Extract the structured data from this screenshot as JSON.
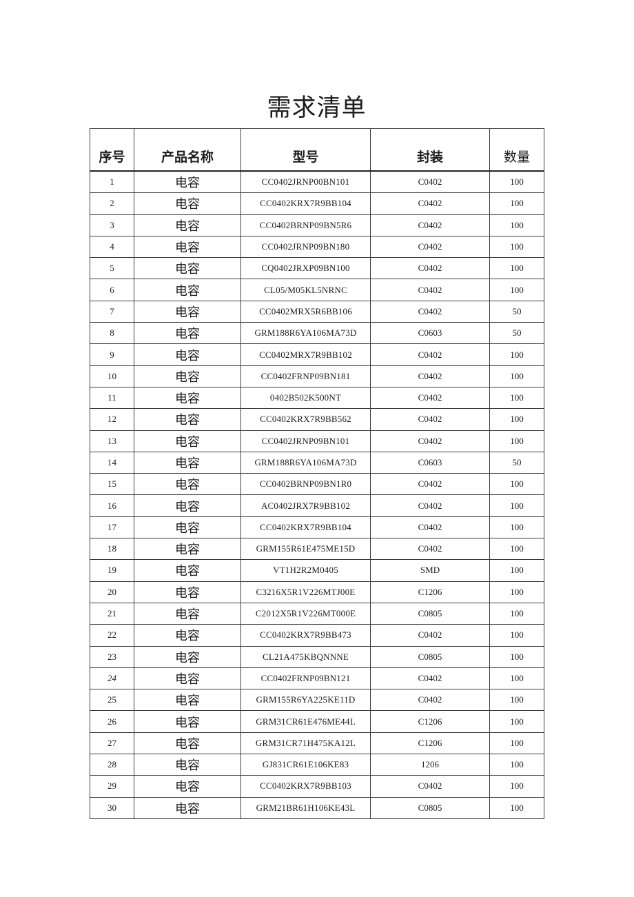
{
  "page": {
    "title": "需求清单"
  },
  "table": {
    "headers": [
      "序号",
      "产品名称",
      "型号",
      "封装",
      "数量"
    ],
    "column_keys": [
      "serial",
      "product_name",
      "model",
      "package",
      "quantity"
    ],
    "italic_serials": [
      "24"
    ],
    "rows": [
      [
        "1",
        "电容",
        "CC0402JRNP00BN101",
        "C0402",
        "100"
      ],
      [
        "2",
        "电容",
        "CC0402KRX7R9BB104",
        "C0402",
        "100"
      ],
      [
        "3",
        "电容",
        "CC0402BRNP09BN5R6",
        "C0402",
        "100"
      ],
      [
        "4",
        "电容",
        "CC0402JRNP09BN180",
        "C0402",
        "100"
      ],
      [
        "5",
        "电容",
        "CQ0402JRXP09BN100",
        "C0402",
        "100"
      ],
      [
        "6",
        "电容",
        "CL05/M05KL5NRNC",
        "C0402",
        "100"
      ],
      [
        "7",
        "电容",
        "CC0402MRX5R6BB106",
        "C0402",
        "50"
      ],
      [
        "8",
        "电容",
        "GRM188R6YA106MA73D",
        "C0603",
        "50"
      ],
      [
        "9",
        "电容",
        "CC0402MRX7R9BB102",
        "C0402",
        "100"
      ],
      [
        "10",
        "电容",
        "CC0402FRNP09BN181",
        "C0402",
        "100"
      ],
      [
        "11",
        "电容",
        "0402B502K500NT",
        "C0402",
        "100"
      ],
      [
        "12",
        "电容",
        "CC0402KRX7R9BB562",
        "C0402",
        "100"
      ],
      [
        "13",
        "电容",
        "CC0402JRNP09BN101",
        "C0402",
        "100"
      ],
      [
        "14",
        "电容",
        "GRM188R6YA106MA73D",
        "C0603",
        "50"
      ],
      [
        "15",
        "电容",
        "CC0402BRNP09BN1R0",
        "C0402",
        "100"
      ],
      [
        "16",
        "电容",
        "AC0402JRX7R9BB102",
        "C0402",
        "100"
      ],
      [
        "17",
        "电容",
        "CC0402KRX7R9BB104",
        "C0402",
        "100"
      ],
      [
        "18",
        "电容",
        "GRM155R61E475ME15D",
        "C0402",
        "100"
      ],
      [
        "19",
        "电容",
        "VT1H2R2M0405",
        "SMD",
        "100"
      ],
      [
        "20",
        "电容",
        "C3216X5R1V226MTJ00E",
        "C1206",
        "100"
      ],
      [
        "21",
        "电容",
        "C2012X5R1V226MT000E",
        "C0805",
        "100"
      ],
      [
        "22",
        "电容",
        "CC0402KRX7R9BB473",
        "C0402",
        "100"
      ],
      [
        "23",
        "电容",
        "CL21A475KBQNNNE",
        "C0805",
        "100"
      ],
      [
        "24",
        "电容",
        "CC0402FRNP09BN121",
        "C0402",
        "100"
      ],
      [
        "25",
        "电容",
        "GRM155R6YA225KE11D",
        "C0402",
        "100"
      ],
      [
        "26",
        "电容",
        "GRM31CR61E476ME44L",
        "C1206",
        "100"
      ],
      [
        "27",
        "电容",
        "GRM31CR71H475KA12L",
        "C1206",
        "100"
      ],
      [
        "28",
        "电容",
        "GJ831CR61E106KE83",
        "1206",
        "100"
      ],
      [
        "29",
        "电容",
        "CC0402KRX7R9BB103",
        "C0402",
        "100"
      ],
      [
        "30",
        "电容",
        "GRM21BR61H106KE43L",
        "C0805",
        "100"
      ]
    ]
  }
}
